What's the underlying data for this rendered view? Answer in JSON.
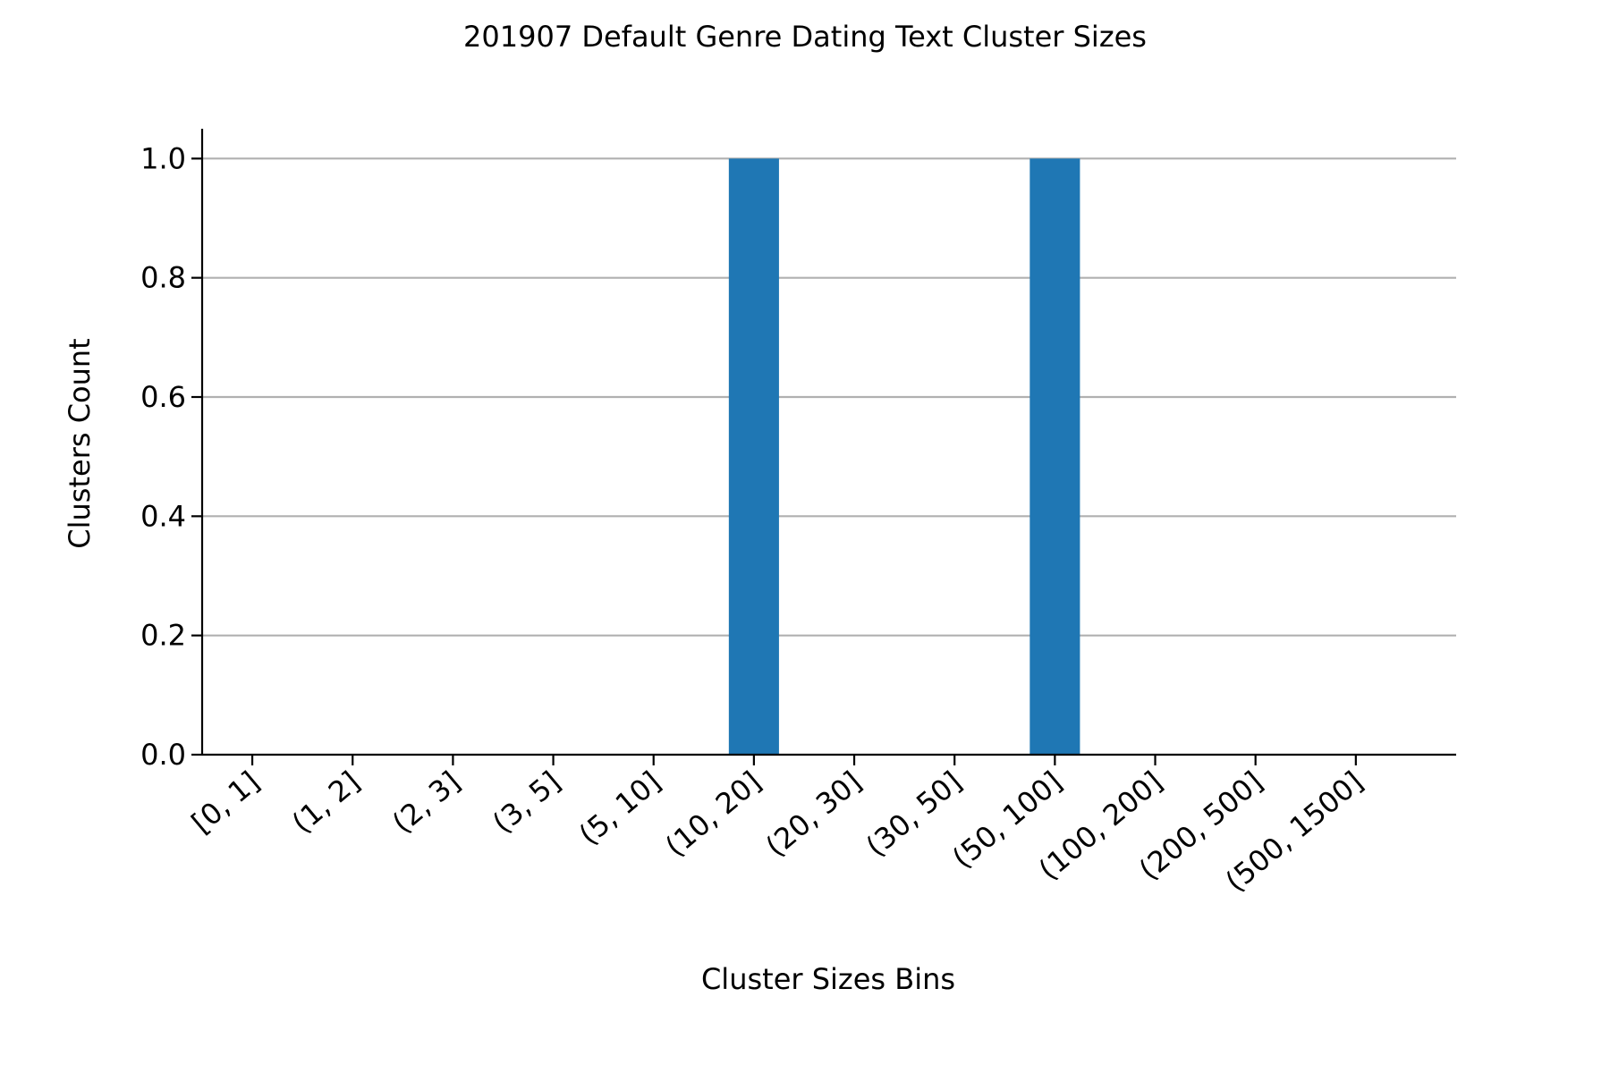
{
  "chart_data": {
    "type": "bar",
    "title": "201907 Default Genre Dating Text Cluster Sizes",
    "xlabel": "Cluster Sizes Bins",
    "ylabel": "Clusters Count",
    "categories": [
      "[0, 1]",
      "(1, 2]",
      "(2, 3]",
      "(3, 5]",
      "(5, 10]",
      "(10, 20]",
      "(20, 30]",
      "(30, 50]",
      "(50, 100]",
      "(100, 200]",
      "(200, 500]",
      "(500, 1500]"
    ],
    "values": [
      0,
      0,
      0,
      0,
      0,
      1,
      0,
      0,
      1,
      0,
      0,
      0
    ],
    "ylim": [
      0,
      1.05
    ],
    "yticks": [
      "0.0",
      "0.2",
      "0.4",
      "0.6",
      "0.8",
      "1.0"
    ],
    "grid": "horizontal",
    "bar_color": "#1f77b4",
    "xtick_rotation_deg": -40
  }
}
